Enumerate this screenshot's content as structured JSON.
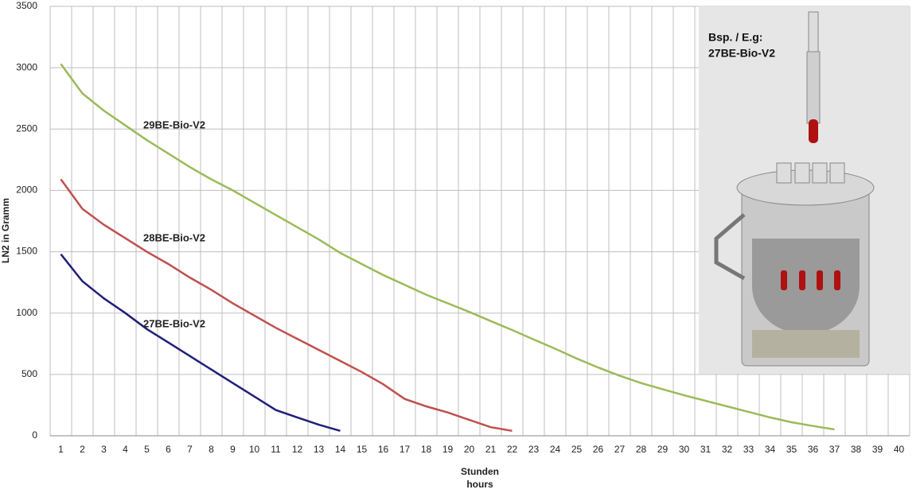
{
  "chart_data": {
    "type": "line",
    "y_label": "LN2 in Gramm",
    "x_label": [
      "Stunden",
      "hours"
    ],
    "categories": [
      "1",
      "2",
      "3",
      "4",
      "5",
      "6",
      "7",
      "8",
      "9",
      "10",
      "11",
      "12",
      "13",
      "14",
      "15",
      "16",
      "17",
      "18",
      "19",
      "20",
      "21",
      "22",
      "23",
      "24",
      "25",
      "26",
      "27",
      "28",
      "29",
      "30",
      "31",
      "32",
      "33",
      "34",
      "35",
      "36",
      "37",
      "38",
      "39",
      "40"
    ],
    "series": [
      {
        "name": "29BE-Bio-V2",
        "color": "#9bbb59",
        "values": [
          3030,
          2790,
          2650,
          2530,
          2410,
          2300,
          2190,
          2090,
          2000,
          1900,
          1800,
          1700,
          1600,
          1490,
          1400,
          1310,
          1230,
          1150,
          1080,
          1010,
          935,
          862,
          785,
          710,
          630,
          557,
          490,
          430,
          380,
          330,
          285,
          240,
          195,
          150,
          110,
          80,
          52,
          null,
          null,
          null
        ]
      },
      {
        "name": "28BE-Bio-V2",
        "color": "#c0504d",
        "values": [
          2090,
          1850,
          1720,
          1610,
          1500,
          1400,
          1290,
          1190,
          1080,
          980,
          880,
          790,
          700,
          610,
          520,
          420,
          300,
          240,
          190,
          130,
          70,
          40,
          null,
          null,
          null,
          null,
          null,
          null,
          null,
          null,
          null,
          null,
          null,
          null,
          null,
          null,
          null,
          null,
          null,
          null
        ]
      },
      {
        "name": "27BE-Bio-V2",
        "color": "#1f1f7a",
        "values": [
          1480,
          1260,
          1120,
          1000,
          870,
          760,
          650,
          540,
          430,
          320,
          210,
          150,
          90,
          40,
          null,
          null,
          null,
          null,
          null,
          null,
          null,
          null,
          null,
          null,
          null,
          null,
          null,
          null,
          null,
          null,
          null,
          null,
          null,
          null,
          null,
          null,
          null,
          null,
          null,
          null
        ]
      }
    ],
    "ylim": [
      0,
      3500
    ],
    "yticks": [
      0,
      500,
      1000,
      1500,
      2000,
      2500,
      3000,
      3500
    ],
    "grid": true,
    "inset": {
      "caption": [
        "Bsp. / E.g:",
        "27BE-Bio-V2"
      ]
    }
  }
}
